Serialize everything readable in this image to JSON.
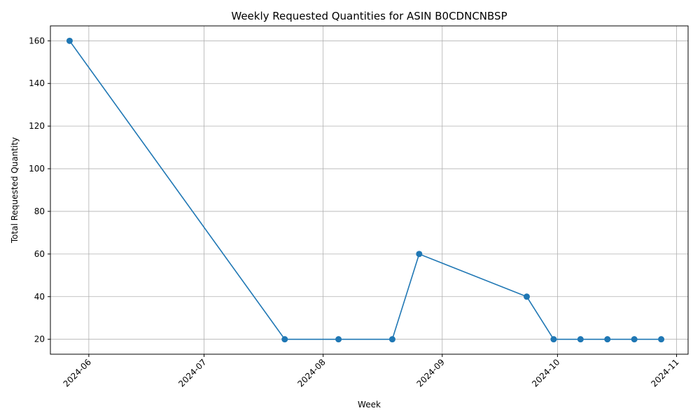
{
  "chart_data": {
    "type": "line",
    "title": "Weekly Requested Quantities for ASIN B0CDNCNBSP",
    "xlabel": "Week",
    "ylabel": "Total Requested Quantity",
    "x_ticks": [
      "2024-06",
      "2024-07",
      "2024-08",
      "2024-09",
      "2024-10",
      "2024-11"
    ],
    "y_ticks": [
      20,
      40,
      60,
      80,
      100,
      120,
      140,
      160
    ],
    "xlim": [
      "2024-05-22",
      "2024-11-04"
    ],
    "ylim": [
      13,
      167
    ],
    "grid": true,
    "line_color": "#1f77b4",
    "series": [
      {
        "x": [
          "2024-05-27",
          "2024-07-22",
          "2024-08-05",
          "2024-08-19",
          "2024-08-26",
          "2024-09-23",
          "2024-09-30",
          "2024-10-07",
          "2024-10-14",
          "2024-10-21",
          "2024-10-28"
        ],
        "y": [
          160,
          20,
          20,
          20,
          60,
          40,
          20,
          20,
          20,
          20,
          20
        ]
      }
    ]
  }
}
